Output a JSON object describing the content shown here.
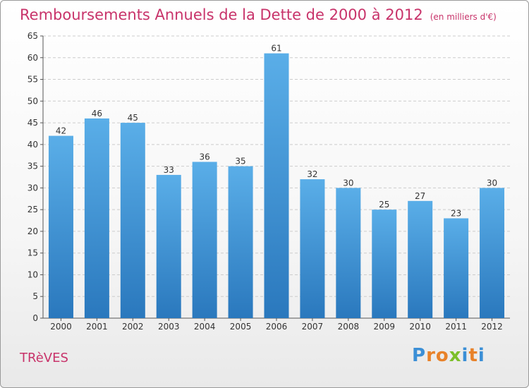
{
  "title": "Remboursements Annuels de la Dette de 2000 à 2012",
  "subtitle": "(en milliers d'€)",
  "town": "TRèVES",
  "logo": {
    "text": "Proxiti",
    "letters": [
      {
        "ch": "P",
        "color": "#3b8fd6"
      },
      {
        "ch": "r",
        "color": "#e8822a"
      },
      {
        "ch": "o",
        "color": "#e8822a"
      },
      {
        "ch": "x",
        "color": "#7cbf2a"
      },
      {
        "ch": "i",
        "color": "#3b8fd6"
      },
      {
        "ch": "t",
        "color": "#e8822a"
      },
      {
        "ch": "i",
        "color": "#3b8fd6"
      }
    ]
  },
  "colors": {
    "title": "#c8336a",
    "bar_top": "#5aaee8",
    "bar_bottom": "#2a78bd",
    "grid": "#cccccc",
    "axis_text": "#333333"
  },
  "chart_data": {
    "type": "bar",
    "categories": [
      "2000",
      "2001",
      "2002",
      "2003",
      "2004",
      "2005",
      "2006",
      "2007",
      "2008",
      "2009",
      "2010",
      "2011",
      "2012"
    ],
    "values": [
      42,
      46,
      45,
      33,
      36,
      35,
      61,
      32,
      30,
      25,
      27,
      23,
      30
    ],
    "ylim": [
      0,
      65
    ],
    "yticks": [
      0,
      5,
      10,
      15,
      20,
      25,
      30,
      35,
      40,
      45,
      50,
      55,
      60,
      65
    ],
    "grid": true,
    "data_labels": true
  }
}
